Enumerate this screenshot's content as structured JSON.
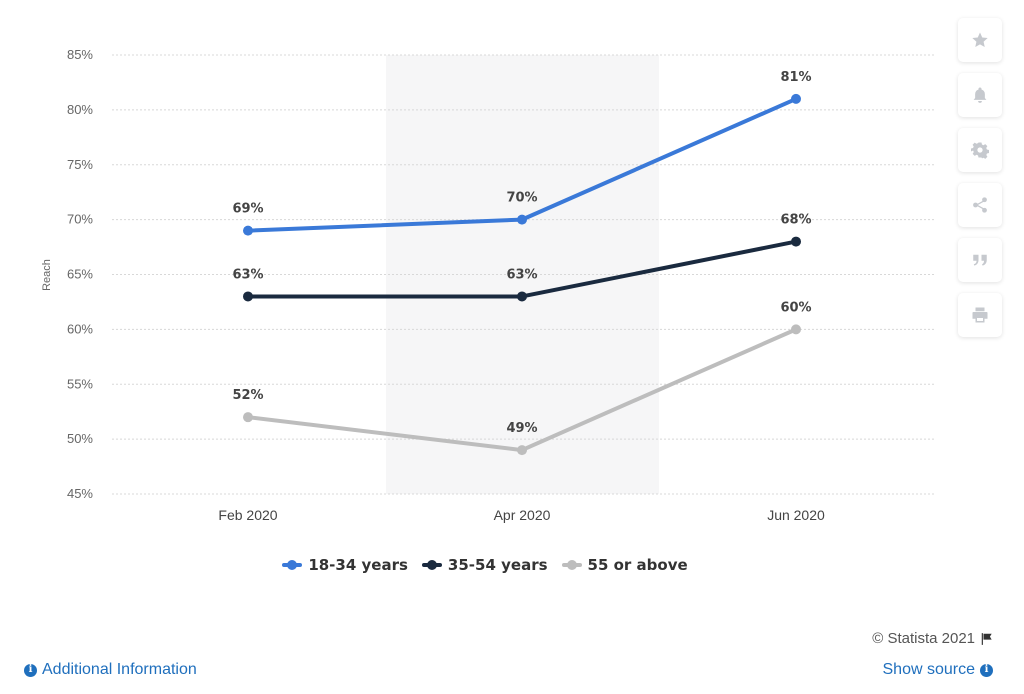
{
  "colors": {
    "series_18_34": "#3a79d8",
    "series_35_54": "#1a2a3f",
    "series_55_above": "#bdbdbd",
    "grid": "#d8d8d8",
    "highlight_band": "#f6f6f7",
    "link": "#1f6fbd"
  },
  "chart_data": {
    "type": "line",
    "title": "",
    "xlabel": "",
    "ylabel": "Reach",
    "categories": [
      "Feb 2020",
      "Apr 2020",
      "Jun 2020"
    ],
    "y_ticks": [
      "45%",
      "50%",
      "55%",
      "60%",
      "65%",
      "70%",
      "75%",
      "80%",
      "85%"
    ],
    "ylim": [
      45,
      85
    ],
    "grid": "horizontal dotted",
    "highlighted_category": "Apr 2020",
    "legend_position": "bottom-center",
    "series": [
      {
        "name": "18-34 years",
        "values": [
          69,
          70,
          81
        ],
        "labels": [
          "69%",
          "70%",
          "81%"
        ]
      },
      {
        "name": "35-54 years",
        "values": [
          63,
          63,
          68
        ],
        "labels": [
          "63%",
          "63%",
          "68%"
        ]
      },
      {
        "name": "55 or above",
        "values": [
          52,
          49,
          60
        ],
        "labels": [
          "52%",
          "49%",
          "60%"
        ]
      }
    ]
  },
  "toolbar": {
    "buttons": [
      "star-icon",
      "bell-icon",
      "gear-icon",
      "share-icon",
      "quote-icon",
      "print-icon"
    ]
  },
  "footer": {
    "copyright": "© Statista 2021",
    "additional_info": "Additional Information",
    "show_source": "Show source"
  }
}
